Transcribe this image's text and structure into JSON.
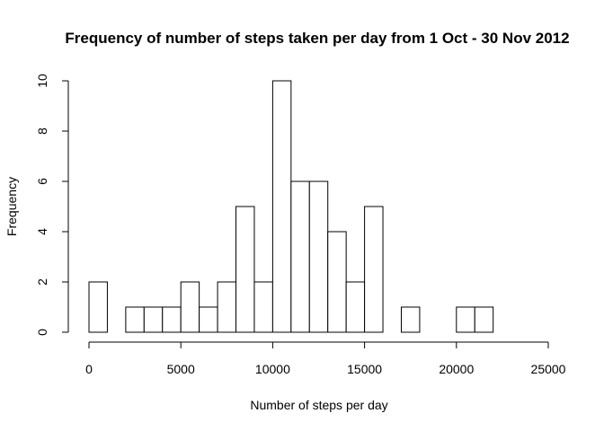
{
  "chart_data": {
    "type": "bar",
    "title": "Frequency of number of steps taken per day from 1 Oct - 30 Nov 2012",
    "xlabel": "Number of steps per day",
    "ylabel": "Frequency",
    "bin_width": 1000,
    "bin_starts": [
      0,
      1000,
      2000,
      3000,
      4000,
      5000,
      6000,
      7000,
      8000,
      9000,
      10000,
      11000,
      12000,
      13000,
      14000,
      15000,
      16000,
      17000,
      18000,
      19000,
      20000,
      21000
    ],
    "values": [
      2,
      0,
      1,
      1,
      1,
      2,
      1,
      2,
      5,
      2,
      10,
      6,
      6,
      4,
      2,
      5,
      0,
      1,
      0,
      0,
      1,
      1
    ],
    "xlim": [
      0,
      25000
    ],
    "ylim": [
      0,
      10
    ],
    "x_ticks": [
      0,
      5000,
      10000,
      15000,
      20000,
      25000
    ],
    "x_tick_labels": [
      "0",
      "5000",
      "10000",
      "15000",
      "20000",
      "25000"
    ],
    "y_ticks": [
      0,
      2,
      4,
      6,
      8,
      10
    ],
    "y_tick_labels": [
      "0",
      "2",
      "4",
      "6",
      "8",
      "10"
    ],
    "grid": false,
    "bar_fill": "#ffffff",
    "bar_stroke": "#000000"
  }
}
